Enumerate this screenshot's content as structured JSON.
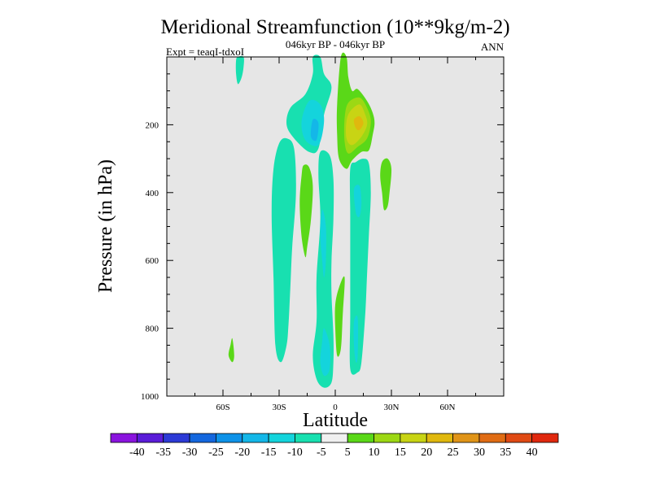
{
  "chart_data": {
    "type": "contour",
    "title": "Meridional Streamfunction (10**9kg/m-2)",
    "subtitle_center": "046kyr BP - 046kyr BP",
    "subtitle_left": "Expt = teaqI-tdxoI",
    "subtitle_right": "ANN",
    "xlabel": "Latitude",
    "ylabel": "Pressure (in hPa)",
    "xlim": [
      -90,
      90
    ],
    "ylim": [
      1000,
      0
    ],
    "xticks": [
      {
        "value": -60,
        "label": "60S"
      },
      {
        "value": -30,
        "label": "30S"
      },
      {
        "value": 0,
        "label": "0"
      },
      {
        "value": 30,
        "label": "30N"
      },
      {
        "value": 60,
        "label": "60N"
      }
    ],
    "yticks": [
      {
        "value": 200,
        "label": "200"
      },
      {
        "value": 400,
        "label": "400"
      },
      {
        "value": 600,
        "label": "600"
      },
      {
        "value": 800,
        "label": "800"
      },
      {
        "value": 1000,
        "label": "1000"
      }
    ],
    "background_color": "#e6e6e6",
    "colorbar": {
      "colors": [
        "#8a14de",
        "#5a1cd8",
        "#2c3ad6",
        "#1467de",
        "#0e92e8",
        "#14b7e8",
        "#14d4dc",
        "#18e0b0",
        "#f0f0f0",
        "#5ad818",
        "#9cd814",
        "#c8d414",
        "#e0b80e",
        "#e09418",
        "#e06c14",
        "#e04a14",
        "#e0280e"
      ],
      "labels": [
        "-40",
        "-35",
        "-30",
        "-25",
        "-20",
        "-15",
        "-10",
        "-5",
        "5",
        "10",
        "15",
        "20",
        "25",
        "30",
        "35",
        "40"
      ]
    },
    "regions": [
      {
        "level": -5,
        "color": "#18e0b0",
        "lonlat": [
          [
            -52,
            0
          ],
          [
            -49,
            0
          ],
          [
            -49,
            30
          ],
          [
            -50,
            60
          ],
          [
            -52,
            80
          ],
          [
            -53,
            50
          ],
          [
            -53,
            10
          ]
        ]
      },
      {
        "level": 5,
        "color": "#5ad818",
        "lonlat": [
          [
            -55,
            830
          ],
          [
            -54,
            880
          ],
          [
            -55,
            900
          ],
          [
            -57,
            880
          ],
          [
            -56,
            850
          ]
        ]
      },
      {
        "level": -5,
        "color": "#18e0b0",
        "lonlat": [
          [
            -12,
            0
          ],
          [
            -8,
            0
          ],
          [
            -6,
            50
          ],
          [
            -2,
            90
          ],
          [
            -6,
            170
          ],
          [
            -9,
            270
          ],
          [
            -14,
            280
          ],
          [
            -22,
            240
          ],
          [
            -26,
            200
          ],
          [
            -24,
            150
          ],
          [
            -16,
            110
          ],
          [
            -12,
            50
          ]
        ]
      },
      {
        "level": -10,
        "color": "#14d4dc",
        "lonlat": [
          [
            -14,
            130
          ],
          [
            -8,
            140
          ],
          [
            -6,
            190
          ],
          [
            -9,
            260
          ],
          [
            -16,
            245
          ],
          [
            -18,
            190
          ]
        ]
      },
      {
        "level": -15,
        "color": "#14b7e8",
        "lonlat": [
          [
            -12,
            185
          ],
          [
            -9,
            195
          ],
          [
            -10,
            245
          ],
          [
            -13,
            235
          ]
        ]
      },
      {
        "level": -5,
        "color": "#18e0b0",
        "lonlat": [
          [
            -30,
            255
          ],
          [
            -26,
            240
          ],
          [
            -22,
            270
          ],
          [
            -21,
            400
          ],
          [
            -23,
            560
          ],
          [
            -24,
            680
          ],
          [
            -25,
            790
          ],
          [
            -26,
            850
          ],
          [
            -29,
            900
          ],
          [
            -32,
            850
          ],
          [
            -33,
            650
          ],
          [
            -34,
            460
          ],
          [
            -33,
            330
          ]
        ]
      },
      {
        "level": 5,
        "color": "#5ad818",
        "lonlat": [
          [
            -17,
            320
          ],
          [
            -14,
            325
          ],
          [
            -12,
            380
          ],
          [
            -13,
            480
          ],
          [
            -15,
            560
          ],
          [
            -16,
            590
          ],
          [
            -18,
            530
          ],
          [
            -19,
            430
          ],
          [
            -18,
            350
          ]
        ]
      },
      {
        "level": -5,
        "color": "#18e0b0",
        "lonlat": [
          [
            -8,
            280
          ],
          [
            -3,
            290
          ],
          [
            -1,
            360
          ],
          [
            -1,
            480
          ],
          [
            -2,
            600
          ],
          [
            -2,
            700
          ],
          [
            -1,
            820
          ],
          [
            -1,
            900
          ],
          [
            -2,
            960
          ],
          [
            -6,
            975
          ],
          [
            -10,
            950
          ],
          [
            -12,
            880
          ],
          [
            -10,
            780
          ],
          [
            -10,
            650
          ],
          [
            -8,
            480
          ],
          [
            -9,
            350
          ]
        ]
      },
      {
        "level": -10,
        "color": "#14d4dc",
        "lonlat": [
          [
            -7,
            450
          ],
          [
            -5,
            500
          ],
          [
            -5,
            600
          ],
          [
            -6,
            650
          ],
          [
            -7,
            600
          ],
          [
            -8,
            520
          ]
        ]
      },
      {
        "level": -10,
        "color": "#14d4dc",
        "lonlat": [
          [
            -6,
            800
          ],
          [
            -3,
            850
          ],
          [
            -3,
            920
          ],
          [
            -6,
            940
          ],
          [
            -8,
            900
          ],
          [
            -7,
            840
          ]
        ]
      },
      {
        "level": 5,
        "color": "#5ad818",
        "lonlat": [
          [
            3,
            0
          ],
          [
            6,
            0
          ],
          [
            7,
            60
          ],
          [
            9,
            100
          ],
          [
            12,
            95
          ],
          [
            17,
            130
          ],
          [
            20,
            165
          ],
          [
            21,
            195
          ],
          [
            20,
            230
          ],
          [
            18,
            275
          ],
          [
            14,
            280
          ],
          [
            9,
            305
          ],
          [
            6,
            330
          ],
          [
            2,
            300
          ],
          [
            1,
            230
          ],
          [
            1,
            140
          ]
        ]
      },
      {
        "level": 10,
        "color": "#9cd814",
        "lonlat": [
          [
            7,
            135
          ],
          [
            13,
            120
          ],
          [
            17,
            150
          ],
          [
            19,
            190
          ],
          [
            17,
            240
          ],
          [
            12,
            265
          ],
          [
            7,
            285
          ],
          [
            5,
            250
          ],
          [
            5,
            180
          ]
        ]
      },
      {
        "level": 15,
        "color": "#c8d414",
        "lonlat": [
          [
            8,
            160
          ],
          [
            13,
            140
          ],
          [
            16,
            170
          ],
          [
            17,
            200
          ],
          [
            14,
            235
          ],
          [
            9,
            260
          ],
          [
            6,
            240
          ],
          [
            6,
            190
          ]
        ]
      },
      {
        "level": 20,
        "color": "#e0b80e",
        "lonlat": [
          [
            10,
            185
          ],
          [
            13,
            175
          ],
          [
            15,
            195
          ],
          [
            13,
            215
          ],
          [
            11,
            210
          ]
        ]
      },
      {
        "level": -5,
        "color": "#18e0b0",
        "lonlat": [
          [
            8,
            330
          ],
          [
            11,
            310
          ],
          [
            15,
            300
          ],
          [
            18,
            315
          ],
          [
            19,
            400
          ],
          [
            18,
            520
          ],
          [
            17,
            640
          ],
          [
            16,
            760
          ],
          [
            14,
            900
          ],
          [
            12,
            930
          ],
          [
            8,
            920
          ],
          [
            8,
            760
          ],
          [
            8,
            610
          ],
          [
            8,
            470
          ]
        ]
      },
      {
        "level": -10,
        "color": "#14d4dc",
        "lonlat": [
          [
            10,
            390
          ],
          [
            13,
            380
          ],
          [
            14,
            430
          ],
          [
            13,
            470
          ],
          [
            11,
            460
          ]
        ]
      },
      {
        "level": -10,
        "color": "#14d4dc",
        "lonlat": [
          [
            10,
            780
          ],
          [
            12,
            770
          ],
          [
            12,
            880
          ],
          [
            11,
            900
          ],
          [
            10,
            850
          ]
        ]
      },
      {
        "level": 5,
        "color": "#5ad818",
        "lonlat": [
          [
            2,
            680
          ],
          [
            5,
            650
          ],
          [
            4,
            760
          ],
          [
            3,
            860
          ],
          [
            1,
            880
          ],
          [
            0,
            800
          ],
          [
            0,
            730
          ]
        ]
      },
      {
        "level": 5,
        "color": "#5ad818",
        "lonlat": [
          [
            25,
            310
          ],
          [
            28,
            300
          ],
          [
            30,
            330
          ],
          [
            29,
            400
          ],
          [
            28,
            440
          ],
          [
            26,
            450
          ],
          [
            25,
            400
          ],
          [
            24,
            350
          ]
        ]
      }
    ]
  }
}
